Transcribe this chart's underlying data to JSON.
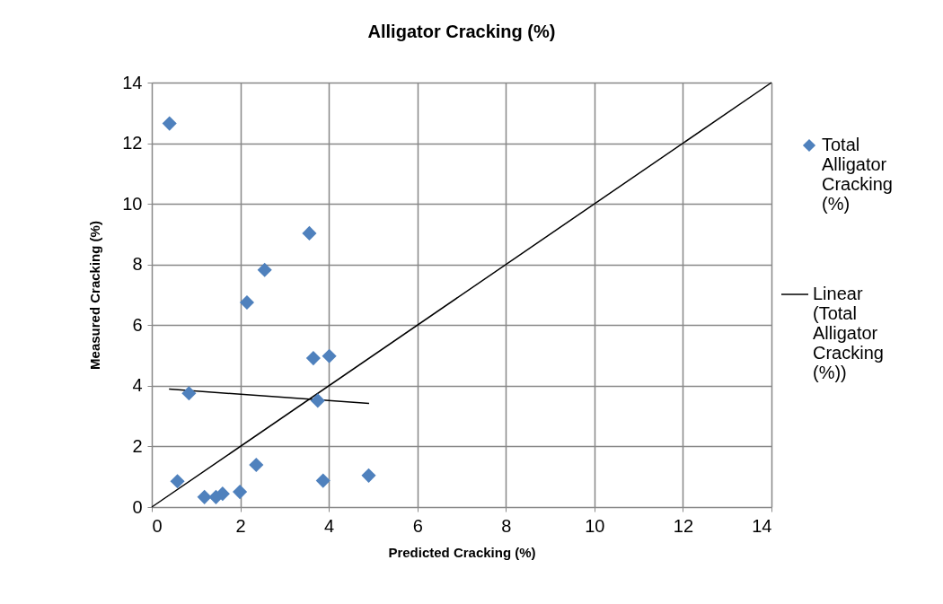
{
  "chart_data": {
    "type": "scatter",
    "title": "Alligator Cracking (%)",
    "xlabel": "Predicted Cracking (%)",
    "ylabel": "Measured Cracking (%)",
    "xlim": [
      0,
      14
    ],
    "xticks": [
      0,
      2,
      4,
      6,
      8,
      10,
      12,
      14
    ],
    "ylim": [
      0,
      14
    ],
    "yticks": [
      0,
      2,
      4,
      6,
      8,
      10,
      12,
      14
    ],
    "grid": true,
    "legend": "right",
    "series": [
      {
        "name": "Total Alligator Cracking (%)",
        "marker": "diamond",
        "color": "#4f81bd",
        "x": [
          0.4,
          3.56,
          2.55,
          2.15,
          3.65,
          4.01,
          0.84,
          3.75,
          2.36,
          0.58,
          3.87,
          4.9,
          1.19,
          1.45,
          1.6,
          1.99
        ],
        "values": [
          12.65,
          9.03,
          7.82,
          6.75,
          4.91,
          4.98,
          3.75,
          3.51,
          1.39,
          0.85,
          0.87,
          1.04,
          0.33,
          0.33,
          0.44,
          0.5
        ]
      },
      {
        "name": "Linear (Total Alligator Cracking (%))",
        "type": "line",
        "color": "#000000",
        "x": [
          0.39,
          4.91
        ],
        "values": [
          3.89,
          3.42
        ]
      },
      {
        "type": "line",
        "color": "#000000",
        "x": [
          0,
          14
        ],
        "values": [
          0,
          14
        ]
      }
    ]
  }
}
